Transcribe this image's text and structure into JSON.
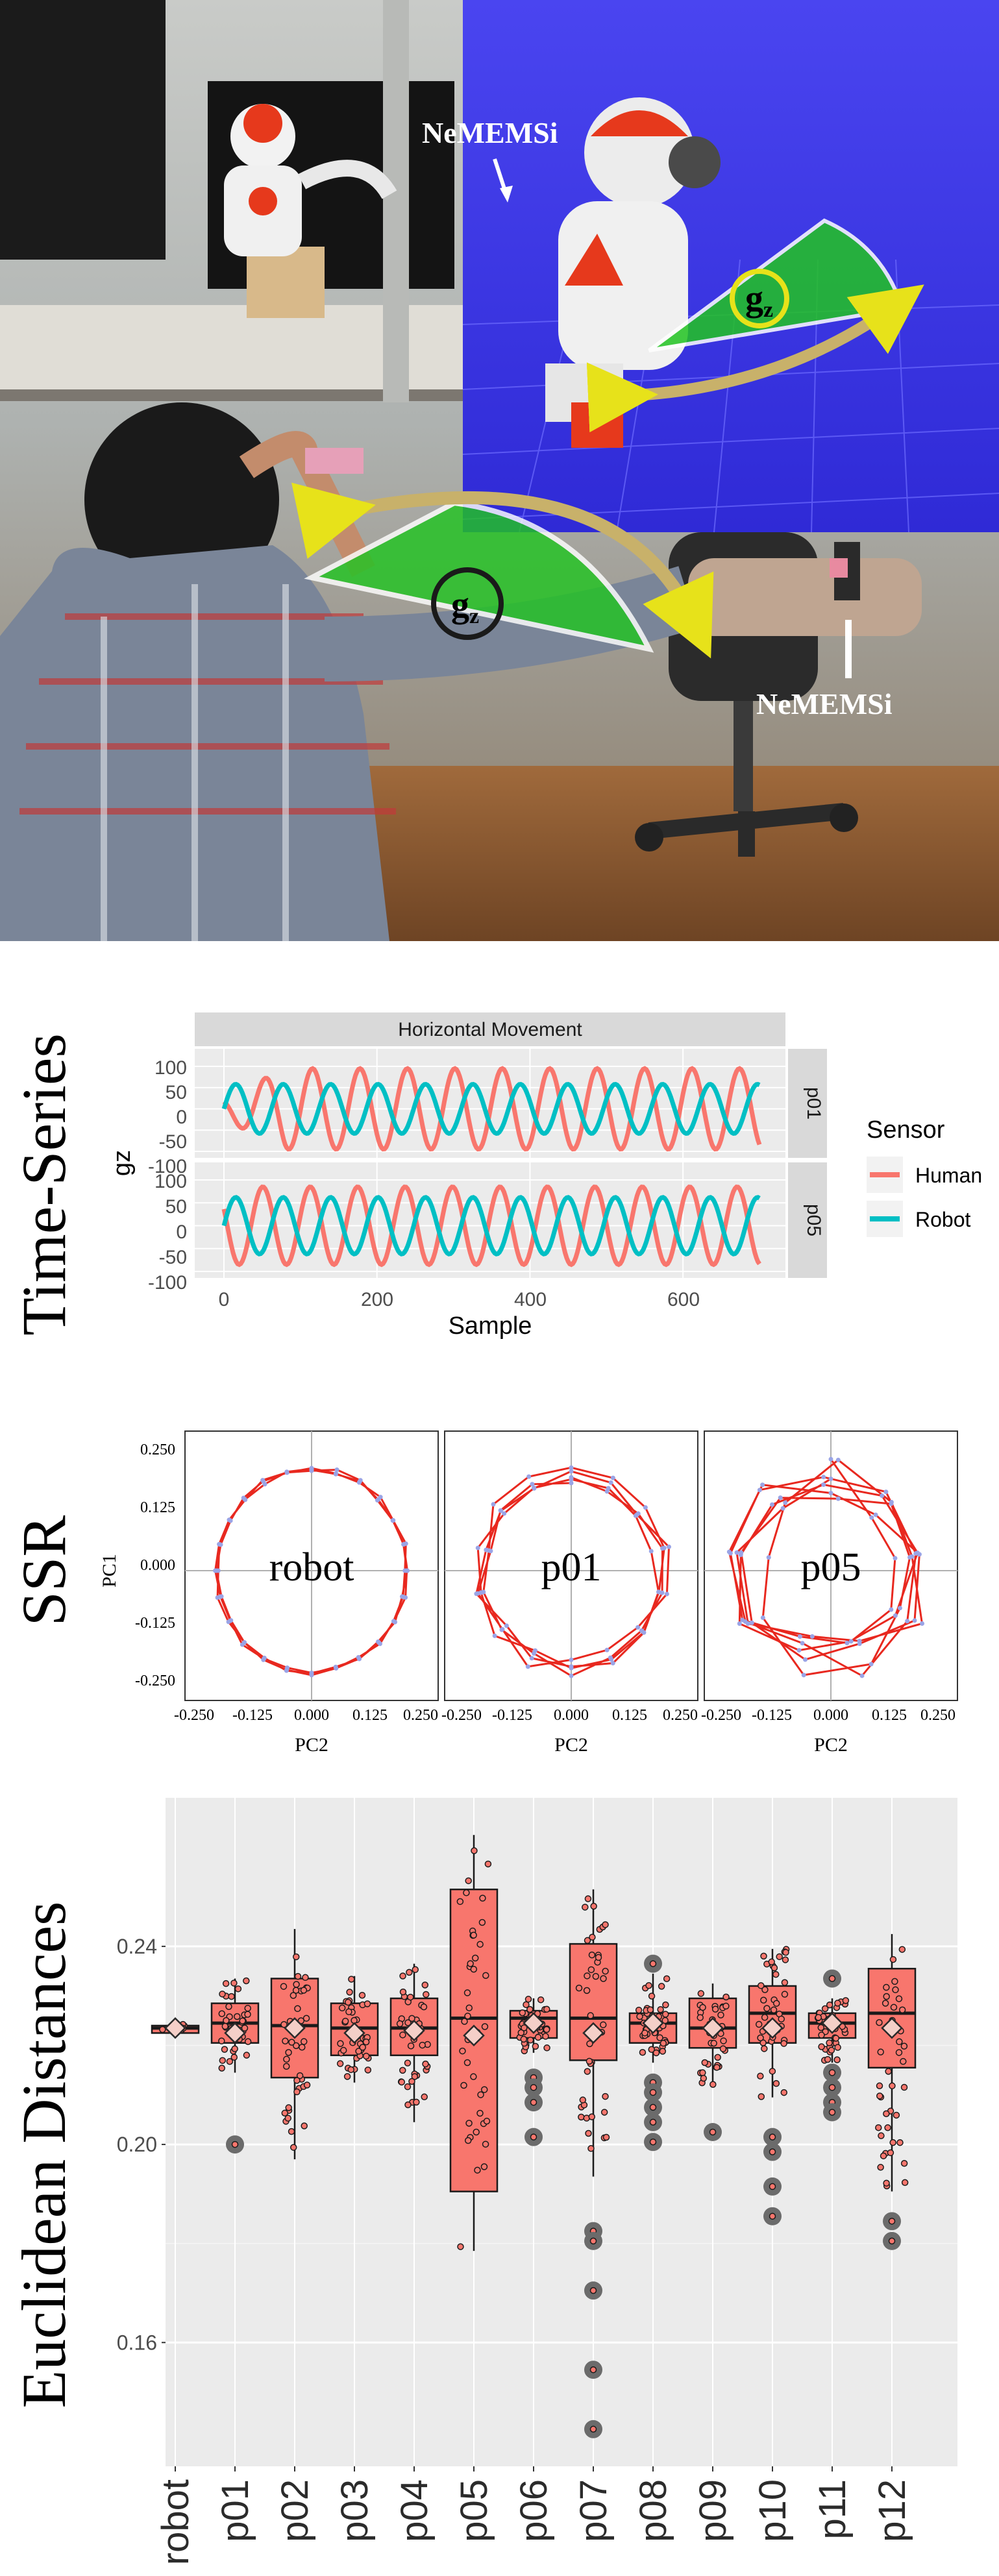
{
  "photo": {
    "nemems_top": "NeMEMSi",
    "nemems_bottom": "NeMEMSi",
    "gz_main": "g",
    "gz_main_sub": "z",
    "gz_robot": "g",
    "gz_robot_sub": "z",
    "colors": {
      "scene_floor": "#3f3fe6",
      "sector_green": "#22c422",
      "arrow_yellow": "#e7e21a",
      "robot_orange": "#e6391c"
    }
  },
  "timeseries": {
    "side_label": "Time-Series",
    "strip_title": "Horizontal Movement",
    "facets": [
      "p01",
      "p05"
    ],
    "y_ticks": [
      "100",
      "50",
      "0",
      "-50",
      "-100"
    ],
    "x_ticks": [
      "0",
      "200",
      "400",
      "600"
    ],
    "ylabel": "gz",
    "xlabel": "Sample",
    "legend_title": "Sensor",
    "legend_entries": [
      "Human",
      "Robot"
    ],
    "colors": {
      "Human": "#f8766d",
      "Robot": "#00bfc4"
    }
  },
  "ssr": {
    "side_label": "SSR",
    "ylabel": "PC1",
    "xlabel": "PC2",
    "panel_labels": [
      "robot",
      "p01",
      "p05"
    ],
    "y_ticks": [
      "0.250",
      "0.125",
      "0.000",
      "-0.125",
      "-0.250"
    ],
    "x_ticks": [
      "-0.250",
      "-0.125",
      "0.000",
      "0.125",
      "0.250"
    ]
  },
  "boxplot": {
    "side_label": "Euclidean Distances",
    "y_ticks": [
      "0.24",
      "0.20",
      "0.16"
    ],
    "categories": [
      "robot",
      "p01",
      "p02",
      "p03",
      "p04",
      "p05",
      "p06",
      "p07",
      "p08",
      "p09",
      "p10",
      "p11",
      "p12"
    ]
  },
  "chart_data": [
    {
      "type": "line",
      "title": "Horizontal Movement",
      "xlabel": "Sample",
      "ylabel": "gz",
      "xlim": [
        0,
        700
      ],
      "ylim": [
        -100,
        100
      ],
      "facets": [
        {
          "name": "p01",
          "series": [
            {
              "name": "Human",
              "amplitude": 95,
              "period": 62,
              "phase": 2.4,
              "amp_start": 25,
              "ramp": 80
            },
            {
              "name": "Robot",
              "amplitude": 58,
              "period": 62,
              "phase": 0.0,
              "amp_start": 58,
              "ramp": 1
            }
          ]
        },
        {
          "name": "p05",
          "series": [
            {
              "name": "Human",
              "amplitude": 85,
              "period": 62,
              "phase": 2.7,
              "amp_start": 85,
              "ramp": 1
            },
            {
              "name": "Robot",
              "amplitude": 62,
              "period": 62,
              "phase": 0.0,
              "amp_start": 62,
              "ramp": 1
            }
          ]
        }
      ],
      "legend": {
        "title": "Sensor",
        "entries": [
          "Human",
          "Robot"
        ],
        "placement": "right"
      }
    },
    {
      "type": "scatter",
      "title": "SSR",
      "xlabel": "PC2",
      "ylabel": "PC1",
      "xlim": [
        -0.28,
        0.28
      ],
      "ylim": [
        -0.28,
        0.28
      ],
      "panels": [
        {
          "name": "robot",
          "vertices": 24,
          "loops": 3,
          "radius": 0.225,
          "jitter": 0.006,
          "drift": 0.0
        },
        {
          "name": "p01",
          "vertices": 14,
          "loops": 4,
          "radius": 0.215,
          "jitter": 0.022,
          "drift": 0.0
        },
        {
          "name": "p05",
          "vertices": 9,
          "loops": 6,
          "radius": 0.2,
          "jitter": 0.05,
          "drift": 0.02
        }
      ]
    },
    {
      "type": "box",
      "ylabel": "Euclidean Distances",
      "ylim": [
        0.135,
        0.27
      ],
      "boxes": [
        {
          "name": "robot",
          "q1": 0.2225,
          "median": 0.2235,
          "q3": 0.224,
          "whisker_low": 0.2215,
          "whisker_high": 0.2245,
          "mean": 0.2235,
          "outliers": []
        },
        {
          "name": "p01",
          "q1": 0.2205,
          "median": 0.2245,
          "q3": 0.2285,
          "whisker_low": 0.2145,
          "whisker_high": 0.2335,
          "mean": 0.2225,
          "outliers": [
            0.2
          ]
        },
        {
          "name": "p02",
          "q1": 0.2135,
          "median": 0.224,
          "q3": 0.2335,
          "whisker_low": 0.197,
          "whisker_high": 0.2435,
          "mean": 0.2235,
          "outliers": []
        },
        {
          "name": "p03",
          "q1": 0.218,
          "median": 0.2235,
          "q3": 0.2285,
          "whisker_low": 0.2125,
          "whisker_high": 0.234,
          "mean": 0.2225,
          "outliers": []
        },
        {
          "name": "p04",
          "q1": 0.218,
          "median": 0.2235,
          "q3": 0.2295,
          "whisker_low": 0.2045,
          "whisker_high": 0.2365,
          "mean": 0.223,
          "outliers": []
        },
        {
          "name": "p05",
          "q1": 0.1905,
          "median": 0.2255,
          "q3": 0.2515,
          "whisker_low": 0.1785,
          "whisker_high": 0.2625,
          "mean": 0.222,
          "outliers": []
        },
        {
          "name": "p06",
          "q1": 0.2215,
          "median": 0.2255,
          "q3": 0.227,
          "whisker_low": 0.2185,
          "whisker_high": 0.2295,
          "mean": 0.2245,
          "outliers": [
            0.2135,
            0.2115,
            0.2085,
            0.2015
          ]
        },
        {
          "name": "p07",
          "q1": 0.217,
          "median": 0.2255,
          "q3": 0.2405,
          "whisker_low": 0.1935,
          "whisker_high": 0.2515,
          "mean": 0.2225,
          "outliers": [
            0.1825,
            0.1805,
            0.1705,
            0.1545,
            0.1425
          ]
        },
        {
          "name": "p08",
          "q1": 0.2205,
          "median": 0.2245,
          "q3": 0.2265,
          "whisker_low": 0.2165,
          "whisker_high": 0.2345,
          "mean": 0.2245,
          "outliers": [
            0.2365,
            0.2125,
            0.2105,
            0.2075,
            0.2045,
            0.2005
          ]
        },
        {
          "name": "p09",
          "q1": 0.2195,
          "median": 0.2235,
          "q3": 0.2295,
          "whisker_low": 0.2115,
          "whisker_high": 0.2325,
          "mean": 0.2235,
          "outliers": [
            0.2025
          ]
        },
        {
          "name": "p10",
          "q1": 0.2205,
          "median": 0.2265,
          "q3": 0.232,
          "whisker_low": 0.2095,
          "whisker_high": 0.2395,
          "mean": 0.2235,
          "outliers": [
            0.2015,
            0.1985,
            0.1915,
            0.1855
          ]
        },
        {
          "name": "p11",
          "q1": 0.2215,
          "median": 0.2245,
          "q3": 0.2265,
          "whisker_low": 0.2165,
          "whisker_high": 0.2295,
          "mean": 0.2245,
          "outliers": [
            0.2335,
            0.2145,
            0.2115,
            0.2085,
            0.2065
          ]
        },
        {
          "name": "p12",
          "q1": 0.2155,
          "median": 0.2265,
          "q3": 0.2355,
          "whisker_low": 0.1905,
          "whisker_high": 0.2425,
          "mean": 0.2235,
          "outliers": [
            0.1845,
            0.1805
          ]
        }
      ]
    }
  ]
}
